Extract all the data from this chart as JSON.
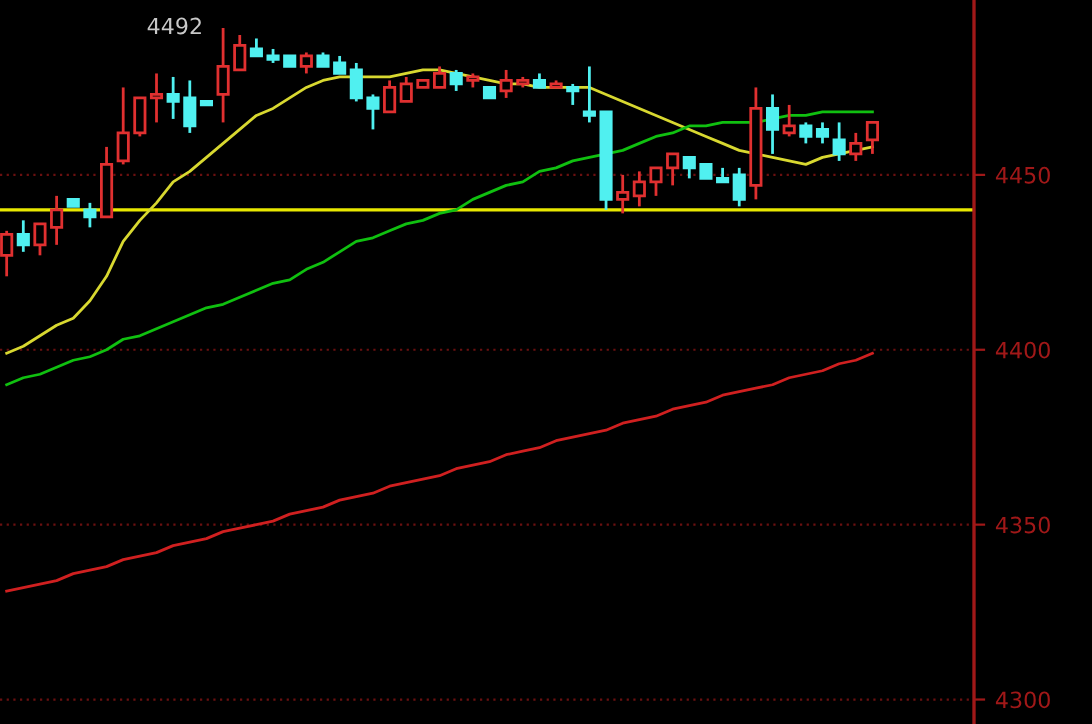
{
  "chart_data": {
    "type": "candlestick",
    "categories": [
      null,
      null,
      null,
      null,
      null,
      null,
      null,
      null,
      null,
      null,
      null,
      null,
      null,
      null,
      null,
      null,
      null,
      null,
      null,
      null,
      null,
      null,
      null,
      null,
      null,
      null,
      null,
      null,
      null,
      null,
      null,
      null,
      null,
      null,
      null,
      null,
      null,
      null,
      null,
      null,
      null,
      null,
      null,
      null,
      null,
      null,
      null,
      null,
      null,
      null,
      null,
      null,
      null
    ],
    "ohlc": [
      [
        4427,
        4434,
        4421,
        4433
      ],
      [
        4433,
        4437,
        4428,
        4430
      ],
      [
        4430,
        4436,
        4427,
        4436
      ],
      [
        4435,
        4444,
        4430,
        4440
      ],
      [
        4443,
        4443,
        4441,
        4441
      ],
      [
        4440,
        4442,
        4435,
        4438
      ],
      [
        4438,
        4458,
        4438,
        4453
      ],
      [
        4454,
        4475,
        4453,
        4462
      ],
      [
        4462,
        4472,
        4461,
        4472
      ],
      [
        4472,
        4479,
        4465,
        4473
      ],
      [
        4473,
        4478,
        4466,
        4471
      ],
      [
        4472,
        4477,
        4462,
        4464
      ],
      [
        4471,
        4471,
        4470,
        4470
      ],
      [
        4473,
        4492,
        4465,
        4481
      ],
      [
        4480,
        4490,
        4480,
        4487
      ],
      [
        4486,
        4489,
        4484,
        4484
      ],
      [
        4484,
        4486,
        4482,
        4483
      ],
      [
        4484,
        4484,
        4481,
        4481
      ],
      [
        4481,
        4485,
        4479,
        4484
      ],
      [
        4484,
        4485,
        4481,
        4481
      ],
      [
        4482,
        4484,
        4479,
        4479
      ],
      [
        4480,
        4482,
        4471,
        4472
      ],
      [
        4472,
        4473,
        4463,
        4469
      ],
      [
        4468,
        4477,
        4468,
        4475
      ],
      [
        4471,
        4478,
        4471,
        4476
      ],
      [
        4475,
        4477,
        4475,
        4477
      ],
      [
        4475,
        4481,
        4475,
        4479
      ],
      [
        4479,
        4480,
        4474,
        4476
      ],
      [
        4477,
        4479,
        4475,
        4478
      ],
      [
        4475,
        4475,
        4472,
        4472
      ],
      [
        4474,
        4480,
        4472,
        4477
      ],
      [
        4476,
        4478,
        4475,
        4477
      ],
      [
        4477,
        4479,
        4475,
        4475
      ],
      [
        4475,
        4477,
        4475,
        4476
      ],
      [
        4475,
        4476,
        4470,
        4474
      ],
      [
        4468,
        4481,
        4465,
        4467
      ],
      [
        4468,
        4468,
        4440,
        4443
      ],
      [
        4443,
        4450,
        4439,
        4445
      ],
      [
        4444,
        4451,
        4441,
        4448
      ],
      [
        4448,
        4452,
        4444,
        4452
      ],
      [
        4452,
        4456,
        4447,
        4456
      ],
      [
        4455,
        4455,
        4449,
        4452
      ],
      [
        4453,
        4453,
        4449,
        4449
      ],
      [
        4449,
        4452,
        4448,
        4448
      ],
      [
        4450,
        4452,
        4441,
        4443
      ],
      [
        4447,
        4475,
        4443,
        4469
      ],
      [
        4469,
        4473,
        4456,
        4463
      ],
      [
        4462,
        4470,
        4461,
        4464
      ],
      [
        4464,
        4465,
        4459,
        4461
      ],
      [
        4463,
        4465,
        4459,
        4461
      ],
      [
        4460,
        4465,
        4454,
        4456
      ],
      [
        4456,
        4462,
        4454,
        4459
      ],
      [
        4460,
        4465,
        4456,
        4465
      ]
    ],
    "colors": [
      "#e03030",
      "#50f0f0",
      "#e03030",
      "#e03030",
      "#50f0f0",
      "#50f0f0",
      "#e03030",
      "#e03030",
      "#e03030",
      "#e03030",
      "#50f0f0",
      "#50f0f0",
      "#50f0f0",
      "#e03030",
      "#e03030",
      "#50f0f0",
      "#50f0f0",
      "#50f0f0",
      "#e03030",
      "#50f0f0",
      "#50f0f0",
      "#50f0f0",
      "#50f0f0",
      "#e03030",
      "#e03030",
      "#e03030",
      "#e03030",
      "#50f0f0",
      "#e03030",
      "#50f0f0",
      "#e03030",
      "#e03030",
      "#50f0f0",
      "#e03030",
      "#50f0f0",
      "#50f0f0",
      "#50f0f0",
      "#e03030",
      "#e03030",
      "#e03030",
      "#e03030",
      "#50f0f0",
      "#50f0f0",
      "#50f0f0",
      "#50f0f0",
      "#e03030",
      "#50f0f0",
      "#e03030",
      "#50f0f0",
      "#50f0f0",
      "#50f0f0",
      "#e03030",
      "#e03030"
    ],
    "series": [
      {
        "type": "line",
        "color": "#d8d830",
        "values": [
          4399,
          4401,
          4404,
          4407,
          4409,
          4414,
          4421,
          4431,
          4437,
          4442,
          4448,
          4451,
          4455,
          4459,
          4463,
          4467,
          4469,
          4472,
          4475,
          4477,
          4478,
          4478,
          4478,
          4478,
          4479,
          4480,
          4480,
          4479,
          4478,
          4477,
          4476,
          4476,
          4475,
          4475,
          4475,
          4475,
          4473,
          4471,
          4469,
          4467,
          4465,
          4463,
          4461,
          4459,
          4457,
          4456,
          4455,
          4454,
          4453,
          4455,
          4456,
          4457,
          4458
        ]
      },
      {
        "type": "line",
        "color": "#10c010",
        "values": [
          4390,
          4392,
          4393,
          4395,
          4397,
          4398,
          4400,
          4403,
          4404,
          4406,
          4408,
          4410,
          4412,
          4413,
          4415,
          4417,
          4419,
          4420,
          4423,
          4425,
          4428,
          4431,
          4432,
          4434,
          4436,
          4437,
          4439,
          4440,
          4443,
          4445,
          4447,
          4448,
          4451,
          4452,
          4454,
          4455,
          4456,
          4457,
          4459,
          4461,
          4462,
          4464,
          4464,
          4465,
          4465,
          4465,
          4466,
          4467,
          4467,
          4468,
          4468,
          4468,
          4468
        ]
      },
      {
        "type": "line",
        "color": "#d02020",
        "values": [
          4331,
          4332,
          4333,
          4334,
          4336,
          4337,
          4338,
          4340,
          4341,
          4342,
          4344,
          4345,
          4346,
          4348,
          4349,
          4350,
          4351,
          4353,
          4354,
          4355,
          4357,
          4358,
          4359,
          4361,
          4362,
          4363,
          4364,
          4366,
          4367,
          4368,
          4370,
          4371,
          4372,
          4374,
          4375,
          4376,
          4377,
          4379,
          4380,
          4381,
          4383,
          4384,
          4385,
          4387,
          4388,
          4389,
          4390,
          4392,
          4393,
          4394,
          4396,
          4397,
          4399
        ]
      }
    ],
    "ylim": [
      4293,
      4500
    ],
    "yticks": [
      4300,
      4350,
      4400,
      4450
    ],
    "grid": "y",
    "tick_labels": "y",
    "ref_lines": [
      {
        "axis": "y",
        "value": 4440,
        "color": "#e8e800"
      }
    ],
    "annotations": [
      "4492"
    ]
  }
}
